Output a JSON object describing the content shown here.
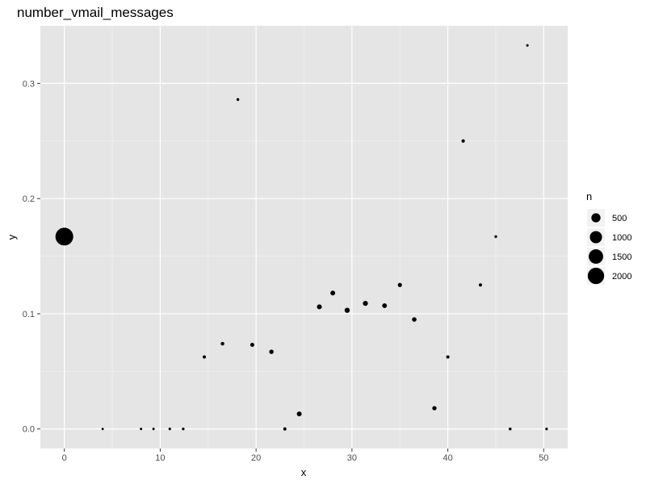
{
  "chart_data": {
    "type": "scatter",
    "title": "number_vmail_messages",
    "xlabel": "x",
    "ylabel": "y",
    "xlim": [
      -2.5,
      52.5
    ],
    "ylim": [
      -0.017,
      0.35
    ],
    "x_ticks": [
      0,
      10,
      20,
      30,
      40,
      50
    ],
    "y_ticks": [
      0.0,
      0.1,
      0.2,
      0.3
    ],
    "x_tick_labels": [
      "0",
      "10",
      "20",
      "30",
      "40",
      "50"
    ],
    "y_tick_labels": [
      "0.0",
      "0.1",
      "0.2",
      "0.3"
    ],
    "grid": true,
    "size_legend": {
      "title": "n",
      "position": "right",
      "entries": [
        {
          "label": "500",
          "value": 500
        },
        {
          "label": "1000",
          "value": 1000
        },
        {
          "label": "1500",
          "value": 1500
        },
        {
          "label": "2000",
          "value": 2000
        }
      ]
    },
    "points": [
      {
        "x": 0,
        "y": 0.167,
        "n": 2411
      },
      {
        "x": 4,
        "y": 0.0,
        "n": 1
      },
      {
        "x": 8,
        "y": 0.0,
        "n": 2
      },
      {
        "x": 9.3,
        "y": 0.0,
        "n": 2
      },
      {
        "x": 11,
        "y": 0.0,
        "n": 3
      },
      {
        "x": 12.4,
        "y": 0.0,
        "n": 5
      },
      {
        "x": 14.6,
        "y": 0.0625,
        "n": 16
      },
      {
        "x": 16.5,
        "y": 0.074,
        "n": 27
      },
      {
        "x": 18.1,
        "y": 0.286,
        "n": 7
      },
      {
        "x": 19.6,
        "y": 0.073,
        "n": 41
      },
      {
        "x": 21.6,
        "y": 0.067,
        "n": 60
      },
      {
        "x": 23.0,
        "y": 0.0,
        "n": 15
      },
      {
        "x": 24.5,
        "y": 0.013,
        "n": 80
      },
      {
        "x": 26.6,
        "y": 0.106,
        "n": 85
      },
      {
        "x": 28.0,
        "y": 0.118,
        "n": 76
      },
      {
        "x": 29.5,
        "y": 0.103,
        "n": 97
      },
      {
        "x": 31.4,
        "y": 0.109,
        "n": 92
      },
      {
        "x": 33.4,
        "y": 0.107,
        "n": 75
      },
      {
        "x": 35.0,
        "y": 0.125,
        "n": 48
      },
      {
        "x": 36.5,
        "y": 0.095,
        "n": 63
      },
      {
        "x": 38.6,
        "y": 0.018,
        "n": 55
      },
      {
        "x": 40.0,
        "y": 0.0625,
        "n": 16
      },
      {
        "x": 41.6,
        "y": 0.25,
        "n": 20
      },
      {
        "x": 43.4,
        "y": 0.125,
        "n": 16
      },
      {
        "x": 45.0,
        "y": 0.167,
        "n": 6
      },
      {
        "x": 46.5,
        "y": 0.0,
        "n": 8
      },
      {
        "x": 48.3,
        "y": 0.333,
        "n": 3
      },
      {
        "x": 50.3,
        "y": 0.0,
        "n": 4
      }
    ]
  }
}
